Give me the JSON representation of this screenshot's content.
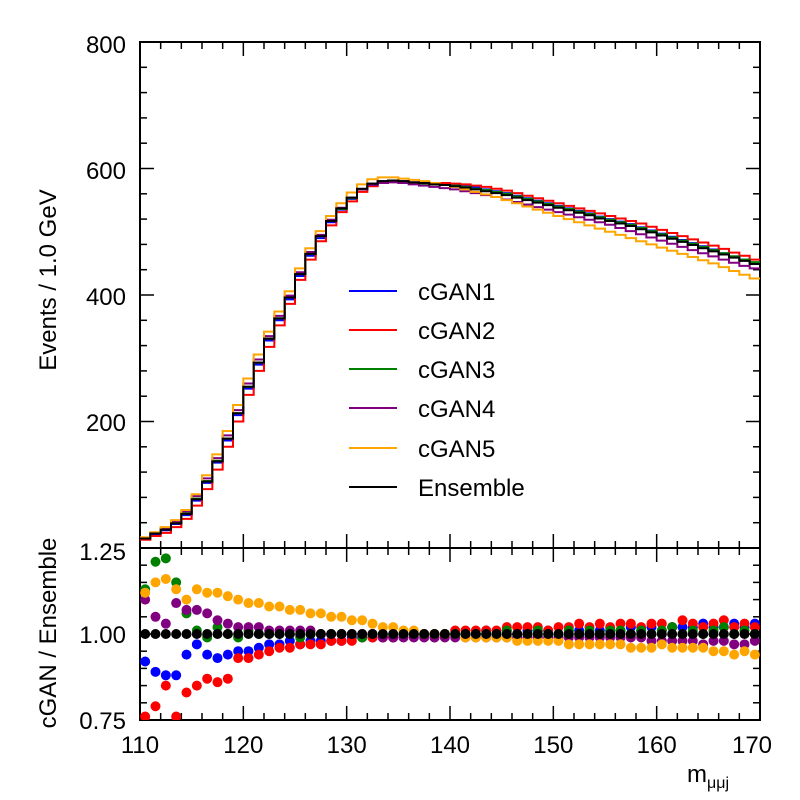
{
  "chart_data": {
    "type": "histogram_with_ratio",
    "x_range": [
      110,
      170
    ],
    "x_ticks": [
      "110",
      "120",
      "130",
      "140",
      "150",
      "160",
      "170"
    ],
    "x_label_main": "m",
    "x_label_sub": "μμj",
    "bin_width": 1.0,
    "top_panel": {
      "ylabel": "Events / 1.0 GeV",
      "ylim": [
        0,
        800
      ],
      "y_ticks": [
        "200",
        "400",
        "600",
        "800"
      ],
      "series": [
        {
          "name": "cGAN1",
          "color": "#0000ff",
          "values": [
            15,
            22,
            28,
            38,
            52,
            75,
            103,
            135,
            170,
            210,
            252,
            290,
            328,
            360,
            393,
            430,
            462,
            490,
            515,
            535,
            552,
            567,
            576,
            580,
            581,
            580,
            578,
            577,
            576,
            575,
            574,
            572,
            570,
            567,
            564,
            561,
            557,
            553,
            549,
            545,
            541,
            537,
            533,
            529,
            524,
            520,
            516,
            512,
            507,
            502,
            497,
            492,
            487,
            482,
            477,
            472,
            466,
            461,
            456,
            451
          ]
        },
        {
          "name": "cGAN2",
          "color": "#ff0000",
          "values": [
            13,
            19,
            24,
            33,
            46,
            67,
            93,
            124,
            160,
            200,
            242,
            280,
            318,
            352,
            386,
            424,
            456,
            485,
            510,
            531,
            548,
            563,
            572,
            577,
            579,
            579,
            578,
            578,
            577,
            577,
            576,
            575,
            573,
            571,
            568,
            565,
            561,
            557,
            553,
            549,
            545,
            541,
            537,
            533,
            529,
            525,
            521,
            517,
            513,
            508,
            503,
            498,
            493,
            488,
            483,
            478,
            473,
            467,
            462,
            456
          ]
        },
        {
          "name": "cGAN3",
          "color": "#008000",
          "values": [
            16,
            23,
            30,
            40,
            55,
            78,
            106,
            138,
            173,
            213,
            255,
            293,
            331,
            363,
            396,
            433,
            465,
            493,
            517,
            536,
            553,
            567,
            575,
            578,
            579,
            578,
            577,
            576,
            575,
            574,
            573,
            571,
            568,
            566,
            563,
            560,
            556,
            552,
            548,
            544,
            540,
            536,
            532,
            528,
            523,
            519,
            515,
            511,
            506,
            501,
            496,
            491,
            486,
            481,
            476,
            471,
            466,
            461,
            456,
            452
          ]
        },
        {
          "name": "cGAN4",
          "color": "#800080",
          "values": [
            16,
            24,
            31,
            42,
            58,
            82,
            110,
            142,
            178,
            218,
            260,
            298,
            335,
            367,
            399,
            436,
            468,
            495,
            519,
            538,
            554,
            567,
            574,
            577,
            578,
            577,
            575,
            573,
            571,
            569,
            567,
            564,
            561,
            558,
            555,
            551,
            547,
            543,
            539,
            535,
            531,
            527,
            523,
            519,
            515,
            511,
            506,
            501,
            496,
            491,
            486,
            481,
            476,
            471,
            466,
            461,
            456,
            451,
            446,
            442
          ]
        },
        {
          "name": "cGAN5",
          "color": "#ffa500",
          "values": [
            17,
            25,
            33,
            44,
            60,
            85,
            115,
            148,
            185,
            226,
            268,
            306,
            342,
            374,
            406,
            442,
            474,
            501,
            525,
            545,
            562,
            575,
            583,
            586,
            586,
            584,
            582,
            580,
            577,
            574,
            571,
            567,
            563,
            559,
            555,
            550,
            545,
            540,
            535,
            530,
            525,
            520,
            515,
            510,
            505,
            500,
            495,
            490,
            485,
            480,
            475,
            470,
            465,
            460,
            455,
            450,
            444,
            438,
            432,
            426
          ]
        },
        {
          "name": "Ensemble",
          "color": "#000000",
          "values": [
            15,
            23,
            29,
            39,
            54,
            77,
            105,
            137,
            173,
            213,
            255,
            293,
            331,
            363,
            396,
            433,
            465,
            493,
            517,
            537,
            554,
            568,
            576,
            580,
            581,
            580,
            578,
            577,
            575,
            574,
            572,
            570,
            567,
            564,
            561,
            558,
            554,
            550,
            546,
            542,
            538,
            534,
            530,
            526,
            521,
            517,
            513,
            509,
            504,
            499,
            494,
            489,
            484,
            479,
            474,
            469,
            464,
            459,
            454,
            449
          ]
        }
      ],
      "legend": [
        "cGAN1",
        "cGAN2",
        "cGAN3",
        "cGAN4",
        "cGAN5",
        "Ensemble"
      ],
      "legend_position": "center"
    },
    "bottom_panel": {
      "ylabel": "cGAN / Ensemble",
      "ylim": [
        0.75,
        1.25
      ],
      "y_ticks": [
        "0.75",
        "1.00",
        "1.25"
      ],
      "series": [
        {
          "name": "cGAN1",
          "color": "#0000ff",
          "values": [
            0.92,
            0.89,
            0.88,
            0.88,
            0.94,
            0.97,
            0.94,
            0.93,
            0.94,
            0.95,
            0.95,
            0.96,
            0.97,
            0.97,
            0.98,
            0.97,
            0.98,
            0.98,
            0.98,
            0.98,
            0.99,
            0.99,
            0.99,
            0.99,
            0.99,
            1.0,
            1.0,
            1.0,
            1.0,
            1.0,
            1.0,
            1.0,
            1.0,
            1.01,
            1.0,
            1.01,
            1.0,
            1.01,
            1.01,
            1.01,
            1.0,
            1.01,
            1.01,
            1.0,
            1.01,
            1.01,
            1.01,
            1.02,
            1.01,
            1.02,
            1.01,
            1.02,
            1.02,
            1.02,
            1.03,
            1.02,
            1.02,
            1.03,
            1.02,
            1.03
          ]
        },
        {
          "name": "cGAN2",
          "color": "#ff0000",
          "values": [
            0.76,
            0.79,
            0.85,
            0.76,
            0.83,
            0.85,
            0.87,
            0.86,
            0.87,
            0.93,
            0.93,
            0.94,
            0.95,
            0.96,
            0.96,
            0.97,
            0.97,
            0.97,
            0.98,
            0.98,
            0.98,
            0.99,
            0.99,
            0.99,
            0.99,
            1.0,
            1.0,
            1.0,
            1.0,
            1.0,
            1.01,
            1.01,
            1.01,
            1.01,
            1.01,
            1.02,
            1.02,
            1.02,
            1.02,
            1.01,
            1.02,
            1.02,
            1.03,
            1.02,
            1.03,
            1.02,
            1.03,
            1.03,
            1.02,
            1.03,
            1.03,
            1.02,
            1.04,
            1.03,
            1.02,
            1.03,
            1.04,
            1.02,
            1.03,
            1.02
          ]
        },
        {
          "name": "cGAN3",
          "color": "#008000",
          "values": [
            1.13,
            1.21,
            1.22,
            1.15,
            1.06,
            1.01,
            0.99,
            1.02,
            1.0,
            0.99,
            1.01,
            1.0,
            1.0,
            1.0,
            1.0,
            0.99,
            1.0,
            1.0,
            1.0,
            1.0,
            1.0,
            0.99,
            1.0,
            1.0,
            1.0,
            1.0,
            1.0,
            1.0,
            0.99,
            1.0,
            1.0,
            1.0,
            1.0,
            1.0,
            1.0,
            1.01,
            1.0,
            1.0,
            1.01,
            1.0,
            1.0,
            1.01,
            1.0,
            1.01,
            1.0,
            1.01,
            1.01,
            1.0,
            1.01,
            1.0,
            1.01,
            1.02,
            1.0,
            1.01,
            1.0,
            1.01,
            1.02,
            1.0,
            1.01,
            1.0
          ]
        },
        {
          "name": "cGAN4",
          "color": "#800080",
          "values": [
            1.1,
            1.05,
            1.03,
            1.09,
            1.07,
            1.07,
            1.06,
            1.04,
            1.03,
            1.02,
            1.02,
            1.02,
            1.01,
            1.01,
            1.01,
            1.01,
            1.01,
            1.0,
            1.0,
            1.0,
            1.0,
            1.0,
            1.0,
            0.99,
            0.99,
            0.99,
            0.99,
            0.99,
            0.99,
            0.99,
            0.99,
            0.99,
            0.99,
            0.99,
            0.99,
            0.99,
            0.99,
            0.99,
            0.99,
            0.99,
            0.99,
            0.99,
            0.99,
            0.99,
            0.99,
            0.99,
            0.99,
            0.99,
            0.99,
            0.98,
            0.98,
            0.98,
            0.98,
            0.98,
            0.97,
            0.98,
            0.98,
            0.97,
            0.97,
            0.98
          ]
        },
        {
          "name": "cGAN5",
          "color": "#ffa500",
          "values": [
            1.12,
            1.15,
            1.16,
            1.13,
            1.1,
            1.13,
            1.12,
            1.12,
            1.11,
            1.1,
            1.09,
            1.09,
            1.08,
            1.08,
            1.07,
            1.07,
            1.06,
            1.06,
            1.05,
            1.05,
            1.04,
            1.04,
            1.03,
            1.02,
            1.02,
            1.01,
            1.01,
            1.0,
            1.0,
            1.0,
            1.0,
            0.99,
            0.99,
            0.99,
            0.99,
            0.99,
            0.98,
            0.98,
            0.98,
            0.98,
            0.98,
            0.97,
            0.97,
            0.97,
            0.97,
            0.97,
            0.97,
            0.96,
            0.96,
            0.96,
            0.97,
            0.96,
            0.96,
            0.96,
            0.96,
            0.95,
            0.95,
            0.94,
            0.95,
            0.94
          ]
        },
        {
          "name": "Ensemble",
          "color": "#000000",
          "values": [
            1,
            1,
            1,
            1,
            1,
            1,
            1,
            1,
            1,
            1,
            1,
            1,
            1,
            1,
            1,
            1,
            1,
            1,
            1,
            1,
            1,
            1,
            1,
            1,
            1,
            1,
            1,
            1,
            1,
            1,
            1,
            1,
            1,
            1,
            1,
            1,
            1,
            1,
            1,
            1,
            1,
            1,
            1,
            1,
            1,
            1,
            1,
            1,
            1,
            1,
            1,
            1,
            1,
            1,
            1,
            1,
            1,
            1,
            1,
            1
          ]
        }
      ]
    }
  }
}
